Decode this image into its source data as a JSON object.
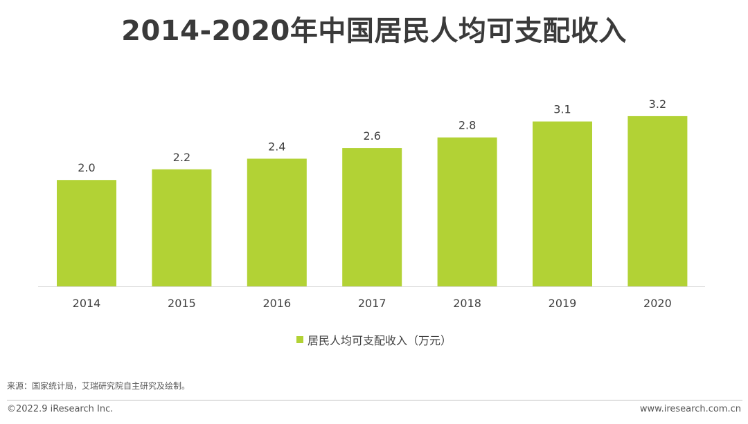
{
  "colors": {
    "bar": "#b2d235",
    "axis": "#d9d9d9"
  },
  "footer": {
    "source": "来源：国家统计局，艾瑞研究院自主研究及绘制。",
    "copyright": "©2022.9 iResearch Inc.",
    "website": "www.iresearch.com.cn"
  },
  "chart_data": {
    "type": "bar",
    "title": "2014-2020年中国居民人均可支配收入",
    "categories": [
      "2014",
      "2015",
      "2016",
      "2017",
      "2018",
      "2019",
      "2020"
    ],
    "series": [
      {
        "name": "居民人均可支配收入（万元）",
        "values": [
          2.0,
          2.2,
          2.4,
          2.6,
          2.8,
          3.1,
          3.2
        ]
      }
    ],
    "ylim": [
      0,
      3.5
    ],
    "grid": false,
    "legend_position": "bottom"
  }
}
